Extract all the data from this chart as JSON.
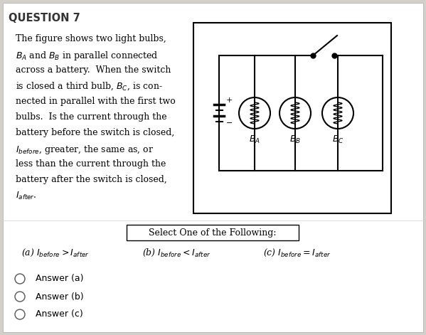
{
  "bg_color": "#d3d0cb",
  "white_bg": "#ffffff",
  "title": "QUESTION 7",
  "body_text": [
    "The figure shows two light bulbs,",
    "$B_A$ and $B_B$ in parallel connected",
    "across a battery.  When the switch",
    "is closed a third bulb, $B_C$, is con-",
    "nected in parallel with the first two",
    "bulbs.  Is the current through the",
    "battery before the switch is closed,",
    "$I_{before}$, greater, the same as, or",
    "less than the current through the",
    "battery after the switch is closed,",
    "$I_{after}$."
  ],
  "select_text": "Select One of the Following:",
  "bulb_labels": [
    "$B_A$",
    "$B_B$",
    "$B_C$"
  ],
  "answers": [
    "Answer (a)",
    "Answer (b)",
    "Answer (c)"
  ]
}
